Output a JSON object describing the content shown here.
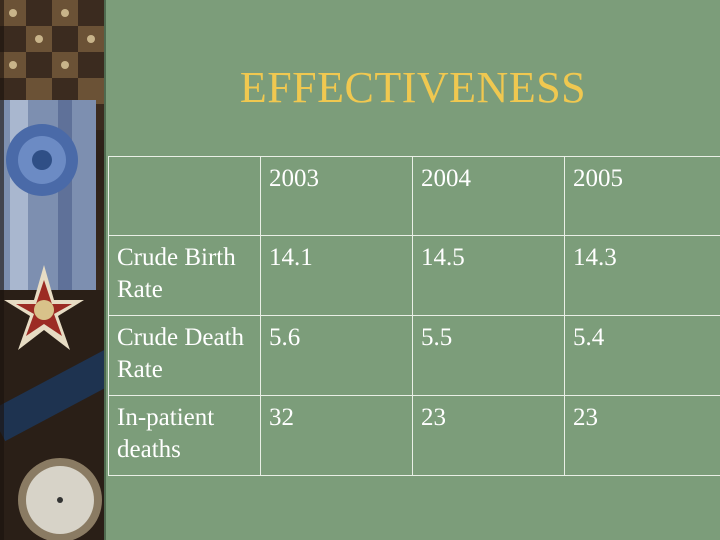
{
  "slide": {
    "title": "EFFECTIVENESS"
  },
  "table": {
    "header": [
      "",
      "2003",
      "2004",
      "2005"
    ],
    "rows": [
      {
        "label": "Crude Birth Rate",
        "values": [
          "14.1",
          "14.5",
          "14.3"
        ]
      },
      {
        "label": "Crude Death Rate",
        "values": [
          "5.6",
          "5.5",
          "5.4"
        ]
      },
      {
        "label": "In-patient deaths",
        "values": [
          "32",
          "23",
          "23"
        ]
      }
    ]
  },
  "colors": {
    "background": "#7c9d7a",
    "title": "#f0c850",
    "text": "#ffffff",
    "grid": "#e9efe6"
  },
  "decoration": {
    "image": "medal-and-compass-photo-strip"
  }
}
